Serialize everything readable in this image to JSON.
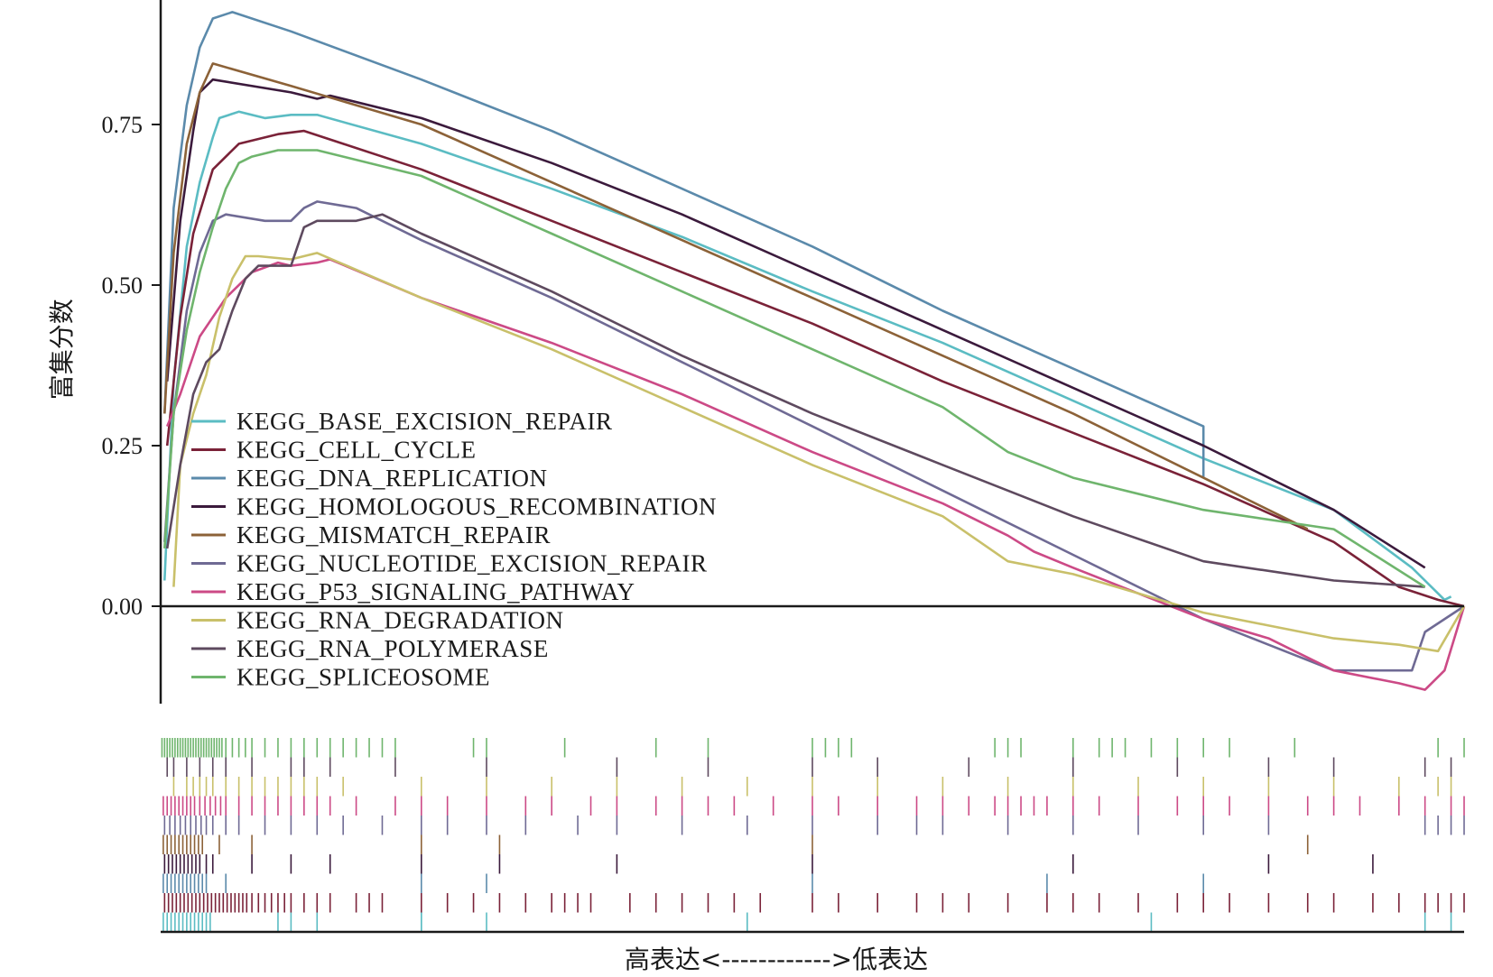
{
  "chart_data": {
    "type": "line",
    "ylabel": "富集分数",
    "xlabel": "高表达<------------>低表达",
    "ylim": [
      -0.16,
      0.94
    ],
    "xlim": [
      0,
      1
    ],
    "yticks": [
      0,
      0.25,
      0.5,
      0.75
    ],
    "ytick_labels": [
      "0.00",
      "0.25",
      "0.50",
      "0.75"
    ],
    "grid": false,
    "legend_position": "bottom-left",
    "series": [
      {
        "name": "KEGG_BASE_EXCISION_REPAIR",
        "color": "#5bbcc3",
        "points": [
          [
            0.003,
            0.04
          ],
          [
            0.01,
            0.35
          ],
          [
            0.02,
            0.56
          ],
          [
            0.03,
            0.66
          ],
          [
            0.04,
            0.73
          ],
          [
            0.045,
            0.76
          ],
          [
            0.06,
            0.77
          ],
          [
            0.08,
            0.76
          ],
          [
            0.1,
            0.765
          ],
          [
            0.12,
            0.765
          ],
          [
            0.2,
            0.72
          ],
          [
            0.3,
            0.65
          ],
          [
            0.4,
            0.575
          ],
          [
            0.5,
            0.49
          ],
          [
            0.6,
            0.41
          ],
          [
            0.7,
            0.32
          ],
          [
            0.8,
            0.23
          ],
          [
            0.9,
            0.15
          ],
          [
            0.96,
            0.06
          ],
          [
            0.985,
            0.01
          ],
          [
            0.99,
            0.015
          ]
        ],
        "hits": [
          0.002,
          0.005,
          0.008,
          0.011,
          0.014,
          0.017,
          0.02,
          0.023,
          0.026,
          0.029,
          0.032,
          0.035,
          0.038,
          0.09,
          0.1,
          0.12,
          0.2,
          0.2,
          0.25,
          0.45,
          0.76,
          0.97,
          0.99
        ]
      },
      {
        "name": "KEGG_CELL_CYCLE",
        "color": "#7a2238",
        "points": [
          [
            0.005,
            0.25
          ],
          [
            0.015,
            0.45
          ],
          [
            0.025,
            0.58
          ],
          [
            0.04,
            0.68
          ],
          [
            0.06,
            0.72
          ],
          [
            0.09,
            0.735
          ],
          [
            0.11,
            0.74
          ],
          [
            0.14,
            0.72
          ],
          [
            0.2,
            0.68
          ],
          [
            0.3,
            0.6
          ],
          [
            0.4,
            0.52
          ],
          [
            0.5,
            0.44
          ],
          [
            0.6,
            0.35
          ],
          [
            0.7,
            0.27
          ],
          [
            0.8,
            0.19
          ],
          [
            0.9,
            0.1
          ],
          [
            0.95,
            0.03
          ],
          [
            0.98,
            0.01
          ],
          [
            1.0,
            0.0
          ]
        ],
        "hits": [
          0.003,
          0.006,
          0.009,
          0.012,
          0.015,
          0.018,
          0.021,
          0.024,
          0.027,
          0.03,
          0.033,
          0.036,
          0.039,
          0.042,
          0.045,
          0.048,
          0.051,
          0.054,
          0.057,
          0.06,
          0.063,
          0.066,
          0.07,
          0.075,
          0.08,
          0.085,
          0.09,
          0.095,
          0.1,
          0.11,
          0.12,
          0.13,
          0.15,
          0.16,
          0.17,
          0.2,
          0.22,
          0.24,
          0.26,
          0.28,
          0.3,
          0.31,
          0.32,
          0.33,
          0.36,
          0.38,
          0.4,
          0.42,
          0.44,
          0.46,
          0.5,
          0.52,
          0.55,
          0.58,
          0.6,
          0.62,
          0.65,
          0.68,
          0.7,
          0.72,
          0.75,
          0.78,
          0.8,
          0.82,
          0.85,
          0.88,
          0.9,
          0.93,
          0.95,
          0.97,
          0.98,
          0.99,
          1.0
        ]
      },
      {
        "name": "KEGG_DNA_REPLICATION",
        "color": "#5b8aab",
        "points": [
          [
            0.003,
            0.3
          ],
          [
            0.01,
            0.62
          ],
          [
            0.02,
            0.78
          ],
          [
            0.03,
            0.87
          ],
          [
            0.04,
            0.915
          ],
          [
            0.055,
            0.925
          ],
          [
            0.1,
            0.895
          ],
          [
            0.2,
            0.82
          ],
          [
            0.3,
            0.74
          ],
          [
            0.4,
            0.65
          ],
          [
            0.5,
            0.56
          ],
          [
            0.6,
            0.46
          ],
          [
            0.7,
            0.37
          ],
          [
            0.8,
            0.28
          ],
          [
            0.8,
            0.2
          ]
        ],
        "hits": [
          0.002,
          0.005,
          0.008,
          0.011,
          0.014,
          0.017,
          0.02,
          0.023,
          0.026,
          0.029,
          0.032,
          0.035,
          0.05,
          0.2,
          0.25,
          0.5,
          0.68,
          0.8
        ]
      },
      {
        "name": "KEGG_HOMOLOGOUS_RECOMBINATION",
        "color": "#3b1a3c",
        "points": [
          [
            0.005,
            0.35
          ],
          [
            0.015,
            0.6
          ],
          [
            0.025,
            0.74
          ],
          [
            0.03,
            0.8
          ],
          [
            0.04,
            0.82
          ],
          [
            0.1,
            0.8
          ],
          [
            0.12,
            0.79
          ],
          [
            0.13,
            0.795
          ],
          [
            0.2,
            0.76
          ],
          [
            0.3,
            0.69
          ],
          [
            0.4,
            0.61
          ],
          [
            0.5,
            0.52
          ],
          [
            0.6,
            0.43
          ],
          [
            0.7,
            0.34
          ],
          [
            0.8,
            0.25
          ],
          [
            0.9,
            0.15
          ],
          [
            0.97,
            0.06
          ]
        ],
        "hits": [
          0.003,
          0.006,
          0.009,
          0.012,
          0.015,
          0.018,
          0.021,
          0.024,
          0.027,
          0.03,
          0.035,
          0.04,
          0.07,
          0.1,
          0.13,
          0.2,
          0.26,
          0.35,
          0.5,
          0.7,
          0.85,
          0.93
        ]
      },
      {
        "name": "KEGG_MISMATCH_REPAIR",
        "color": "#8c6238",
        "points": [
          [
            0.003,
            0.3
          ],
          [
            0.01,
            0.55
          ],
          [
            0.02,
            0.72
          ],
          [
            0.03,
            0.8
          ],
          [
            0.04,
            0.845
          ],
          [
            0.1,
            0.81
          ],
          [
            0.2,
            0.75
          ],
          [
            0.3,
            0.66
          ],
          [
            0.4,
            0.57
          ],
          [
            0.5,
            0.48
          ],
          [
            0.6,
            0.39
          ],
          [
            0.7,
            0.3
          ],
          [
            0.8,
            0.2
          ],
          [
            0.88,
            0.12
          ]
        ],
        "hits": [
          0.002,
          0.005,
          0.008,
          0.011,
          0.014,
          0.017,
          0.02,
          0.023,
          0.026,
          0.029,
          0.032,
          0.045,
          0.07,
          0.2,
          0.26,
          0.5,
          0.88
        ]
      },
      {
        "name": "KEGG_NUCLEOTIDE_EXCISION_REPAIR",
        "color": "#6f6a94",
        "points": [
          [
            0.003,
            0.1
          ],
          [
            0.01,
            0.3
          ],
          [
            0.02,
            0.46
          ],
          [
            0.03,
            0.55
          ],
          [
            0.04,
            0.6
          ],
          [
            0.05,
            0.61
          ],
          [
            0.08,
            0.6
          ],
          [
            0.1,
            0.6
          ],
          [
            0.11,
            0.62
          ],
          [
            0.12,
            0.63
          ],
          [
            0.15,
            0.62
          ],
          [
            0.2,
            0.57
          ],
          [
            0.3,
            0.48
          ],
          [
            0.4,
            0.38
          ],
          [
            0.5,
            0.28
          ],
          [
            0.6,
            0.18
          ],
          [
            0.7,
            0.08
          ],
          [
            0.8,
            -0.02
          ],
          [
            0.9,
            -0.1
          ],
          [
            0.96,
            -0.1
          ],
          [
            0.97,
            -0.04
          ],
          [
            1.0,
            0.0
          ]
        ],
        "hits": [
          0.003,
          0.007,
          0.011,
          0.015,
          0.019,
          0.023,
          0.027,
          0.031,
          0.035,
          0.04,
          0.05,
          0.06,
          0.08,
          0.1,
          0.12,
          0.14,
          0.17,
          0.2,
          0.22,
          0.25,
          0.28,
          0.32,
          0.35,
          0.4,
          0.45,
          0.5,
          0.55,
          0.58,
          0.6,
          0.65,
          0.7,
          0.75,
          0.8,
          0.85,
          0.97,
          0.98,
          0.99,
          1.0
        ]
      },
      {
        "name": "KEGG_P53_SIGNALING_PATHWAY",
        "color": "#cc4a86",
        "points": [
          [
            0.005,
            0.28
          ],
          [
            0.015,
            0.33
          ],
          [
            0.03,
            0.42
          ],
          [
            0.05,
            0.48
          ],
          [
            0.07,
            0.52
          ],
          [
            0.09,
            0.535
          ],
          [
            0.1,
            0.53
          ],
          [
            0.12,
            0.535
          ],
          [
            0.13,
            0.54
          ],
          [
            0.2,
            0.48
          ],
          [
            0.3,
            0.41
          ],
          [
            0.4,
            0.33
          ],
          [
            0.5,
            0.24
          ],
          [
            0.6,
            0.16
          ],
          [
            0.65,
            0.11
          ],
          [
            0.67,
            0.085
          ],
          [
            0.7,
            0.06
          ],
          [
            0.75,
            0.02
          ],
          [
            0.8,
            -0.02
          ],
          [
            0.85,
            -0.05
          ],
          [
            0.9,
            -0.1
          ],
          [
            0.95,
            -0.12
          ],
          [
            0.97,
            -0.13
          ],
          [
            0.985,
            -0.1
          ],
          [
            1.0,
            0.0
          ]
        ],
        "hits": [
          0.002,
          0.005,
          0.008,
          0.011,
          0.014,
          0.017,
          0.02,
          0.023,
          0.026,
          0.03,
          0.034,
          0.038,
          0.042,
          0.046,
          0.05,
          0.06,
          0.07,
          0.08,
          0.09,
          0.1,
          0.11,
          0.12,
          0.13,
          0.15,
          0.18,
          0.2,
          0.22,
          0.25,
          0.28,
          0.3,
          0.33,
          0.35,
          0.38,
          0.4,
          0.42,
          0.44,
          0.47,
          0.5,
          0.52,
          0.55,
          0.58,
          0.6,
          0.62,
          0.64,
          0.65,
          0.66,
          0.67,
          0.68,
          0.7,
          0.72,
          0.75,
          0.78,
          0.8,
          0.82,
          0.85,
          0.88,
          0.9,
          0.92,
          0.95,
          0.97,
          0.99,
          1.0
        ]
      },
      {
        "name": "KEGG_RNA_DEGRADATION",
        "color": "#c9c06a",
        "points": [
          [
            0.01,
            0.03
          ],
          [
            0.015,
            0.22
          ],
          [
            0.025,
            0.3
          ],
          [
            0.035,
            0.36
          ],
          [
            0.045,
            0.45
          ],
          [
            0.055,
            0.51
          ],
          [
            0.065,
            0.545
          ],
          [
            0.075,
            0.545
          ],
          [
            0.1,
            0.54
          ],
          [
            0.12,
            0.55
          ],
          [
            0.2,
            0.48
          ],
          [
            0.3,
            0.4
          ],
          [
            0.4,
            0.31
          ],
          [
            0.5,
            0.22
          ],
          [
            0.6,
            0.14
          ],
          [
            0.65,
            0.07
          ],
          [
            0.7,
            0.05
          ],
          [
            0.75,
            0.02
          ],
          [
            0.8,
            -0.01
          ],
          [
            0.85,
            -0.03
          ],
          [
            0.9,
            -0.05
          ],
          [
            0.95,
            -0.06
          ],
          [
            0.98,
            -0.07
          ],
          [
            1.0,
            0.0
          ]
        ],
        "hits": [
          0.01,
          0.02,
          0.025,
          0.03,
          0.035,
          0.04,
          0.05,
          0.06,
          0.07,
          0.08,
          0.09,
          0.1,
          0.11,
          0.12,
          0.14,
          0.2,
          0.25,
          0.3,
          0.35,
          0.4,
          0.45,
          0.5,
          0.55,
          0.6,
          0.65,
          0.7,
          0.75,
          0.8,
          0.85,
          0.9,
          0.95,
          0.98,
          0.99
        ]
      },
      {
        "name": "KEGG_RNA_POLYMERASE",
        "color": "#5e4a5f",
        "points": [
          [
            0.005,
            0.09
          ],
          [
            0.015,
            0.22
          ],
          [
            0.025,
            0.33
          ],
          [
            0.035,
            0.38
          ],
          [
            0.045,
            0.4
          ],
          [
            0.055,
            0.46
          ],
          [
            0.065,
            0.51
          ],
          [
            0.075,
            0.53
          ],
          [
            0.09,
            0.53
          ],
          [
            0.1,
            0.53
          ],
          [
            0.11,
            0.59
          ],
          [
            0.12,
            0.6
          ],
          [
            0.15,
            0.6
          ],
          [
            0.17,
            0.61
          ],
          [
            0.2,
            0.58
          ],
          [
            0.3,
            0.49
          ],
          [
            0.4,
            0.39
          ],
          [
            0.5,
            0.3
          ],
          [
            0.6,
            0.22
          ],
          [
            0.7,
            0.14
          ],
          [
            0.8,
            0.07
          ],
          [
            0.9,
            0.04
          ],
          [
            0.97,
            0.03
          ]
        ],
        "hits": [
          0.005,
          0.01,
          0.02,
          0.03,
          0.04,
          0.05,
          0.07,
          0.1,
          0.11,
          0.13,
          0.18,
          0.25,
          0.35,
          0.42,
          0.5,
          0.55,
          0.62,
          0.7,
          0.78,
          0.85,
          0.9,
          0.97,
          0.99
        ]
      },
      {
        "name": "KEGG_SPLICEOSOME",
        "color": "#6fb56d",
        "points": [
          [
            0.003,
            0.09
          ],
          [
            0.01,
            0.3
          ],
          [
            0.02,
            0.43
          ],
          [
            0.03,
            0.52
          ],
          [
            0.04,
            0.59
          ],
          [
            0.05,
            0.65
          ],
          [
            0.06,
            0.69
          ],
          [
            0.07,
            0.7
          ],
          [
            0.09,
            0.71
          ],
          [
            0.12,
            0.71
          ],
          [
            0.2,
            0.67
          ],
          [
            0.3,
            0.58
          ],
          [
            0.4,
            0.49
          ],
          [
            0.5,
            0.4
          ],
          [
            0.6,
            0.31
          ],
          [
            0.65,
            0.24
          ],
          [
            0.7,
            0.2
          ],
          [
            0.8,
            0.15
          ],
          [
            0.9,
            0.12
          ],
          [
            0.97,
            0.03
          ]
        ],
        "hits": [
          0.001,
          0.003,
          0.005,
          0.007,
          0.009,
          0.011,
          0.013,
          0.015,
          0.017,
          0.019,
          0.021,
          0.023,
          0.025,
          0.027,
          0.029,
          0.031,
          0.033,
          0.035,
          0.037,
          0.039,
          0.041,
          0.043,
          0.045,
          0.047,
          0.05,
          0.055,
          0.06,
          0.065,
          0.07,
          0.08,
          0.09,
          0.1,
          0.11,
          0.12,
          0.13,
          0.14,
          0.15,
          0.16,
          0.17,
          0.18,
          0.24,
          0.25,
          0.31,
          0.38,
          0.42,
          0.5,
          0.51,
          0.52,
          0.53,
          0.64,
          0.65,
          0.66,
          0.7,
          0.72,
          0.73,
          0.74,
          0.76,
          0.78,
          0.8,
          0.82,
          0.87,
          0.98,
          1.0
        ]
      }
    ]
  }
}
